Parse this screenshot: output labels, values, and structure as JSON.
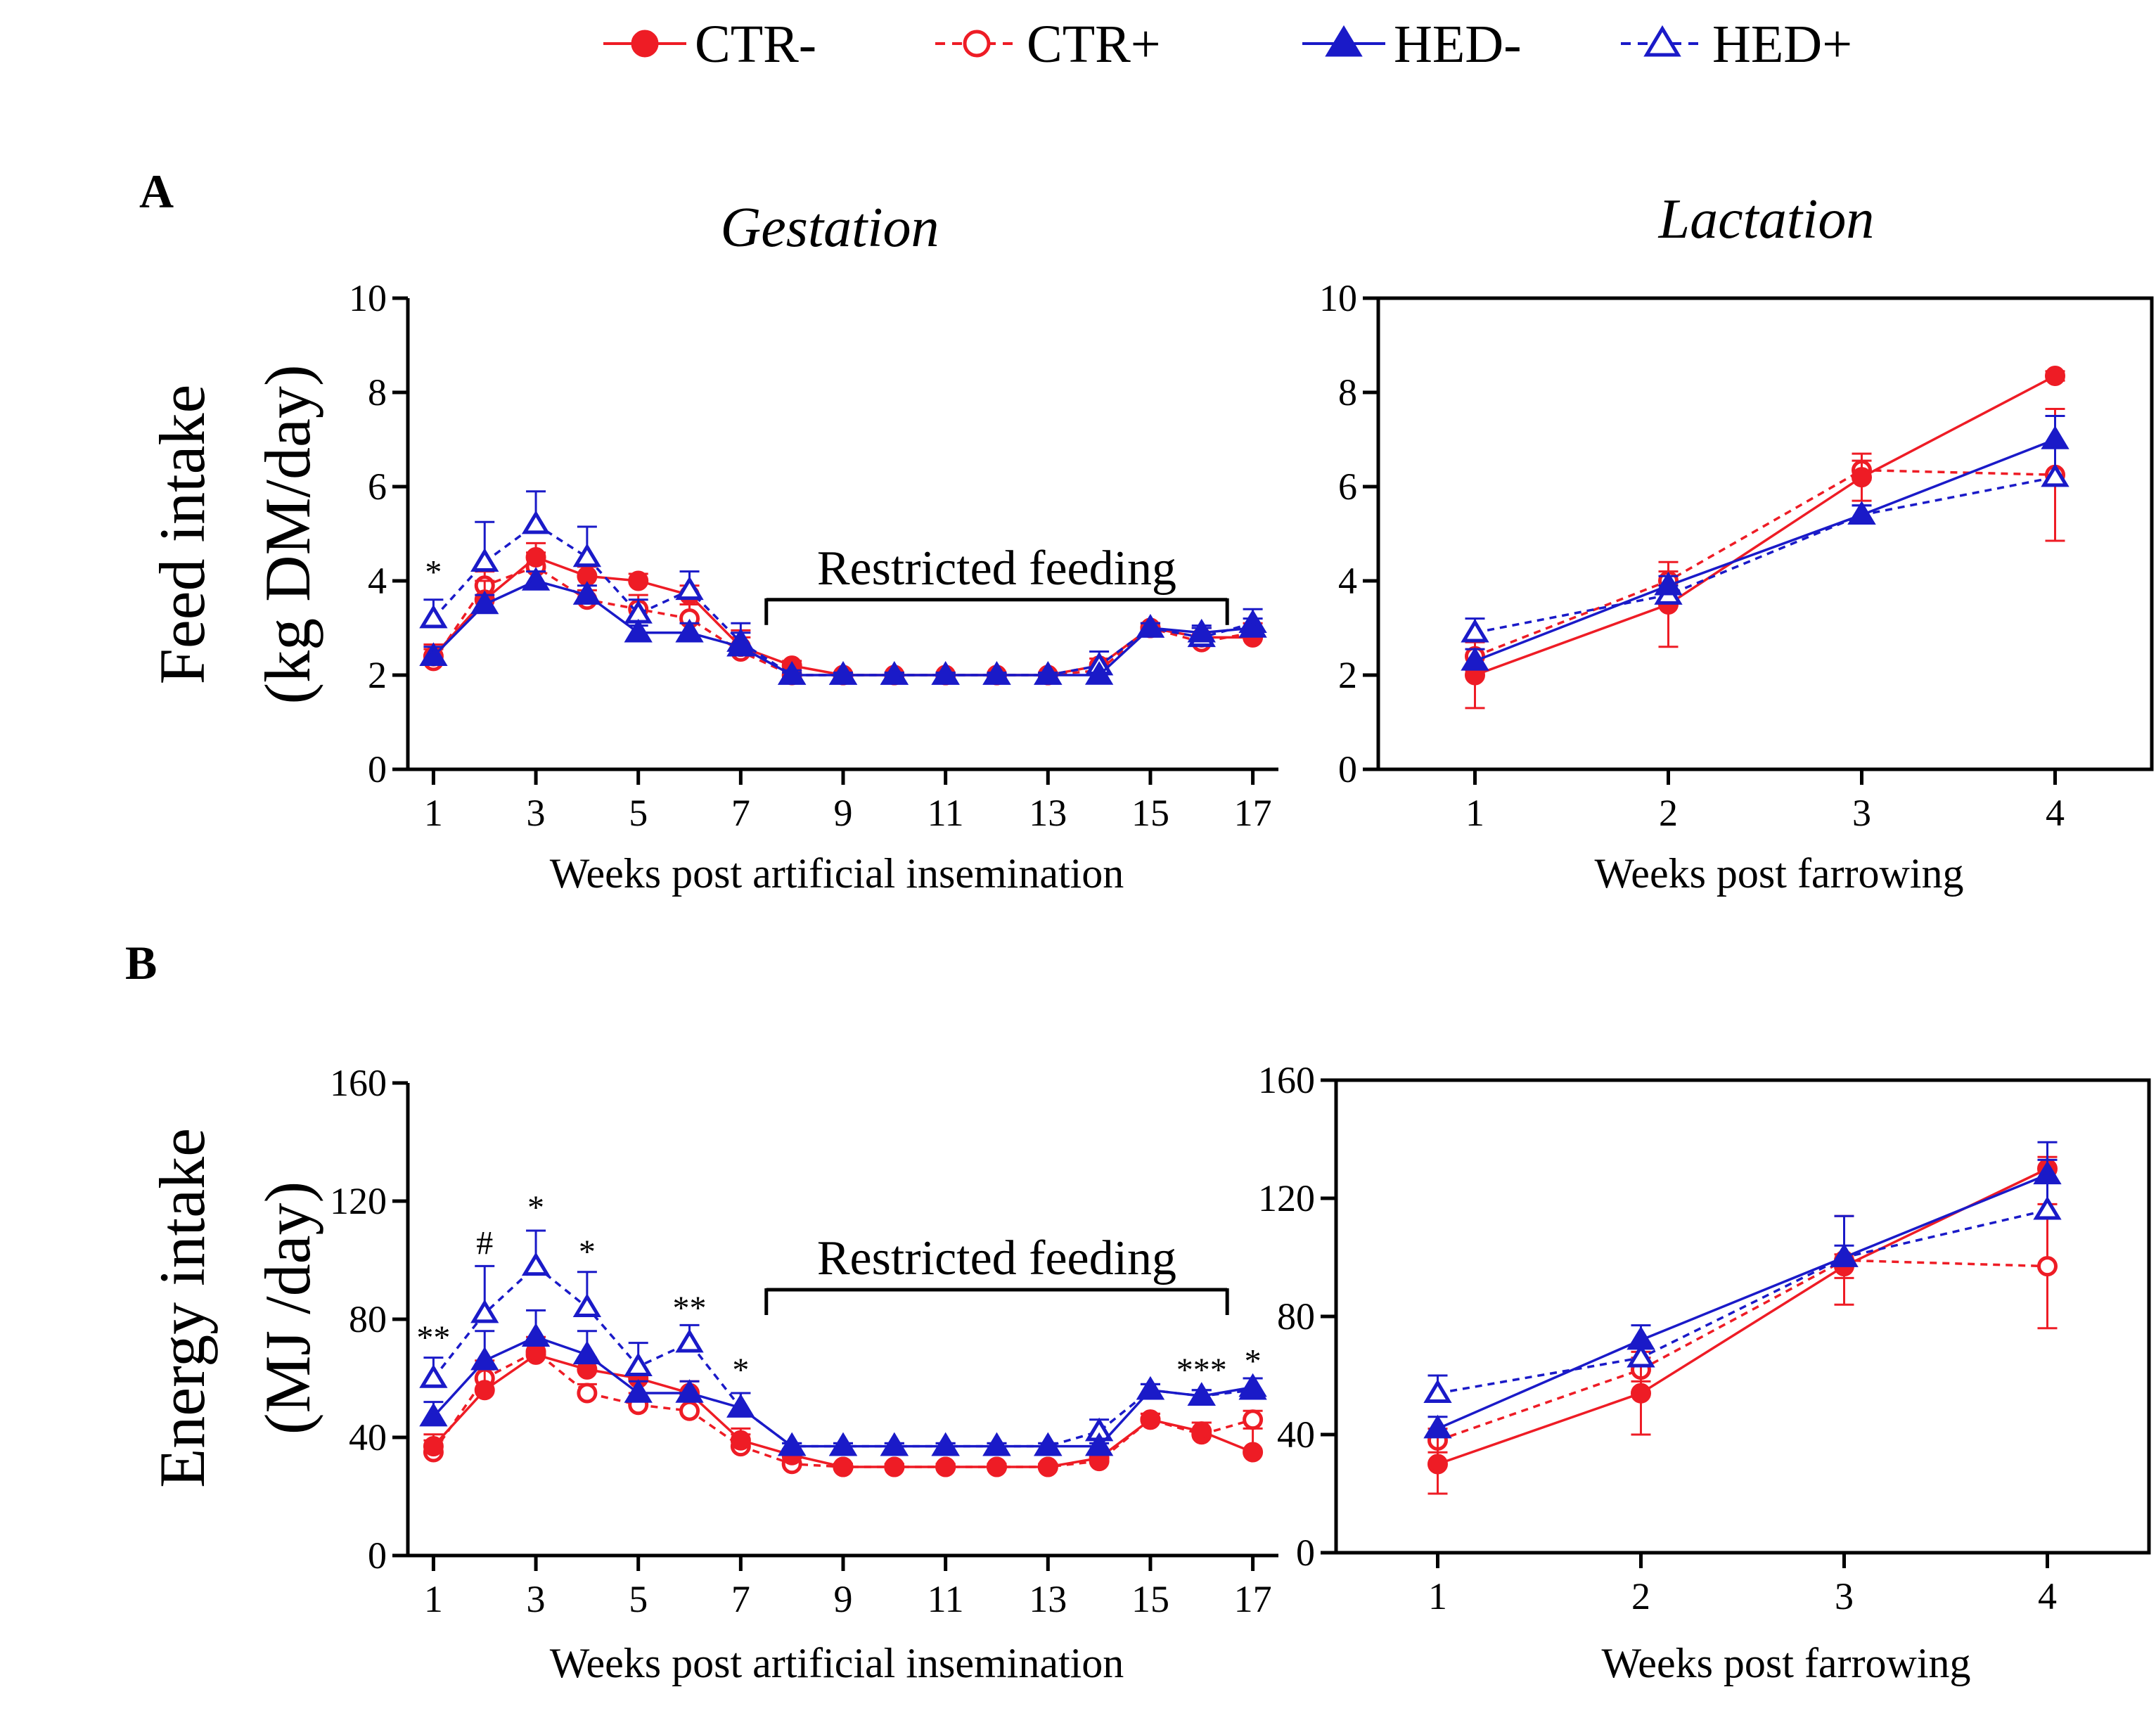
{
  "colors": {
    "ctr": "#ee1c25",
    "hed": "#1a1ac8",
    "axis": "#000000"
  },
  "legend": [
    {
      "label": "CTR-",
      "color": "#ee1c25",
      "marker": "circle-filled",
      "dash": false
    },
    {
      "label": "CTR+",
      "color": "#ee1c25",
      "marker": "circle-open",
      "dash": true
    },
    {
      "label": "HED-",
      "color": "#1a1ac8",
      "marker": "triangle-filled",
      "dash": false
    },
    {
      "label": "HED+",
      "color": "#1a1ac8",
      "marker": "triangle-open",
      "dash": true
    }
  ],
  "panels": [
    {
      "id": "A",
      "label": "A"
    },
    {
      "id": "B",
      "label": "B"
    }
  ],
  "chart_data": [
    {
      "id": "A-gestation",
      "type": "line",
      "panel": "A",
      "title": "Gestation",
      "xlabel": "Weeks post artificial insemination",
      "ylabel_lines": [
        "Feed intake",
        "(kg DM/day)"
      ],
      "xlim": [
        0.5,
        17.5
      ],
      "ylim": [
        0,
        10
      ],
      "xticks": [
        1,
        3,
        5,
        7,
        9,
        11,
        13,
        15,
        17
      ],
      "yticks": [
        0,
        2,
        4,
        6,
        8,
        10
      ],
      "x": [
        1,
        2,
        3,
        4,
        5,
        6,
        7,
        8,
        9,
        10,
        11,
        12,
        13,
        14,
        15,
        16,
        17
      ],
      "bracket": {
        "label": "Restricted feeding",
        "from": 7.5,
        "to": 16.5,
        "y": 3.6
      },
      "annotations": [
        {
          "x": 1,
          "y": 3.95,
          "text": "*"
        }
      ],
      "series": [
        {
          "name": "CTR-",
          "values": [
            2.4,
            3.6,
            4.5,
            4.1,
            4.0,
            3.7,
            2.6,
            2.2,
            2.0,
            2.0,
            2.0,
            2.0,
            2.0,
            2.2,
            3.0,
            2.8,
            2.8
          ],
          "errors": [
            0.25,
            0.4,
            0.3,
            0.2,
            0.15,
            0.2,
            0.35,
            0.1,
            0.05,
            0.05,
            0.05,
            0.05,
            0.05,
            0.15,
            0.1,
            0.2,
            0.15
          ]
        },
        {
          "name": "CTR+",
          "values": [
            2.3,
            3.9,
            4.3,
            3.6,
            3.4,
            3.2,
            2.5,
            2.0,
            2.0,
            2.0,
            2.0,
            2.0,
            2.0,
            2.1,
            3.0,
            2.7,
            2.9
          ],
          "errors": [
            0.25,
            0.3,
            0.3,
            0.2,
            0.3,
            0.3,
            0.3,
            0.1,
            0.05,
            0.05,
            0.05,
            0.05,
            0.05,
            0.15,
            0.1,
            0.3,
            0.2
          ]
        },
        {
          "name": "HED-",
          "values": [
            2.4,
            3.5,
            4.0,
            3.7,
            2.9,
            2.9,
            2.6,
            2.0,
            2.0,
            2.0,
            2.0,
            2.0,
            2.0,
            2.0,
            3.0,
            2.9,
            3.0
          ],
          "errors": [
            0.2,
            0.2,
            0.2,
            0.2,
            0.15,
            0.2,
            0.3,
            0.05,
            0.05,
            0.05,
            0.05,
            0.05,
            0.05,
            0.05,
            0.1,
            0.15,
            0.2
          ]
        },
        {
          "name": "HED+",
          "values": [
            3.2,
            4.4,
            5.2,
            4.5,
            3.3,
            3.8,
            2.7,
            2.0,
            2.0,
            2.0,
            2.0,
            2.0,
            2.0,
            2.2,
            3.0,
            2.8,
            3.1
          ],
          "errors": [
            0.4,
            0.85,
            0.7,
            0.65,
            0.3,
            0.4,
            0.4,
            0.1,
            0.05,
            0.05,
            0.05,
            0.05,
            0.05,
            0.3,
            0.1,
            0.2,
            0.3
          ]
        }
      ]
    },
    {
      "id": "A-lactation",
      "type": "line",
      "panel": "A",
      "title": "Lactation",
      "xlabel": "Weeks post farrowing",
      "xlim": [
        0.5,
        4.5
      ],
      "ylim": [
        0,
        10
      ],
      "xticks": [
        1,
        2,
        3,
        4
      ],
      "yticks": [
        0,
        2,
        4,
        6,
        8,
        10
      ],
      "x": [
        1,
        2,
        3,
        4
      ],
      "series": [
        {
          "name": "CTR-",
          "values": [
            2.0,
            3.5,
            6.2,
            8.35
          ],
          "errors": [
            0.7,
            0.9,
            0.5,
            0.1
          ]
        },
        {
          "name": "CTR+",
          "values": [
            2.4,
            4.0,
            6.35,
            6.25
          ],
          "errors": [
            0.3,
            0.2,
            0.2,
            1.4
          ]
        },
        {
          "name": "HED-",
          "values": [
            2.3,
            3.9,
            5.4,
            7.0
          ],
          "errors": [
            0.25,
            0.2,
            0.2,
            0.5
          ]
        },
        {
          "name": "HED+",
          "values": [
            2.9,
            3.7,
            5.4,
            6.2
          ],
          "errors": [
            0.3,
            0.2,
            0.2,
            1.3
          ]
        }
      ]
    },
    {
      "id": "B-gestation",
      "type": "line",
      "panel": "B",
      "xlabel": "Weeks post artificial insemination",
      "ylabel_lines": [
        "Energy intake",
        "(MJ /day)"
      ],
      "xlim": [
        0.5,
        17.5
      ],
      "ylim": [
        0,
        160
      ],
      "xticks": [
        1,
        3,
        5,
        7,
        9,
        11,
        13,
        15,
        17
      ],
      "yticks": [
        0,
        40,
        80,
        120,
        160
      ],
      "x": [
        1,
        2,
        3,
        4,
        5,
        6,
        7,
        8,
        9,
        10,
        11,
        12,
        13,
        14,
        15,
        16,
        17
      ],
      "bracket": {
        "label": "Restricted feeding",
        "from": 7.5,
        "to": 16.5,
        "y": 90
      },
      "annotations": [
        {
          "x": 1,
          "y": 70,
          "text": "**"
        },
        {
          "x": 2,
          "y": 102,
          "text": "#"
        },
        {
          "x": 3,
          "y": 114,
          "text": "*"
        },
        {
          "x": 4,
          "y": 99,
          "text": "*"
        },
        {
          "x": 6,
          "y": 80,
          "text": "**"
        },
        {
          "x": 7,
          "y": 59,
          "text": "*"
        },
        {
          "x": 16,
          "y": 59,
          "text": "***"
        },
        {
          "x": 17,
          "y": 62,
          "text": "*"
        }
      ],
      "series": [
        {
          "name": "CTR-",
          "values": [
            37,
            56,
            68,
            63,
            60,
            55,
            39,
            34,
            30,
            30,
            30,
            30,
            30,
            33,
            46,
            42,
            35
          ],
          "errors": [
            4,
            7,
            5,
            4,
            3,
            4,
            4,
            2,
            1,
            1,
            1,
            1,
            1,
            2,
            2,
            3,
            8
          ]
        },
        {
          "name": "CTR+",
          "values": [
            35,
            60,
            69,
            55,
            51,
            49,
            37,
            31,
            30,
            30,
            30,
            30,
            30,
            32,
            46,
            41,
            46
          ],
          "errors": [
            4,
            6,
            5,
            3,
            4,
            5,
            4,
            2,
            1,
            1,
            1,
            1,
            1,
            2,
            2,
            4,
            3
          ]
        },
        {
          "name": "HED-",
          "values": [
            47,
            66,
            74,
            68,
            55,
            55,
            50,
            37,
            37,
            37,
            37,
            37,
            37,
            37,
            56,
            54,
            57
          ],
          "errors": [
            5,
            10,
            9,
            8,
            4,
            4,
            5,
            1,
            1,
            1,
            1,
            1,
            1,
            1,
            2,
            2,
            3
          ]
        },
        {
          "name": "HED+",
          "values": [
            60,
            82,
            98,
            84,
            64,
            72,
            50,
            37,
            37,
            37,
            37,
            37,
            37,
            42,
            56,
            54,
            56
          ],
          "errors": [
            7,
            16,
            12,
            12,
            8,
            6,
            5,
            1,
            1,
            1,
            1,
            1,
            1,
            4,
            2,
            2,
            4
          ]
        }
      ]
    },
    {
      "id": "B-lactation",
      "type": "line",
      "panel": "B",
      "xlabel": "Weeks post farrowing",
      "xlim": [
        0.5,
        4.5
      ],
      "ylim": [
        0,
        160
      ],
      "xticks": [
        1,
        2,
        3,
        4
      ],
      "yticks": [
        0,
        40,
        80,
        120,
        160
      ],
      "x": [
        1,
        2,
        3,
        4
      ],
      "series": [
        {
          "name": "CTR-",
          "values": [
            30,
            54,
            97,
            130
          ],
          "errors": [
            10,
            14,
            4,
            4
          ]
        },
        {
          "name": "CTR+",
          "values": [
            38,
            62,
            99,
            97
          ],
          "errors": [
            4,
            4,
            15,
            21
          ]
        },
        {
          "name": "HED-",
          "values": [
            42,
            72,
            100,
            128
          ],
          "errors": [
            4,
            5,
            4,
            5
          ]
        },
        {
          "name": "HED+",
          "values": [
            54,
            66,
            100,
            116
          ],
          "errors": [
            6,
            5,
            14,
            23
          ]
        }
      ]
    }
  ]
}
